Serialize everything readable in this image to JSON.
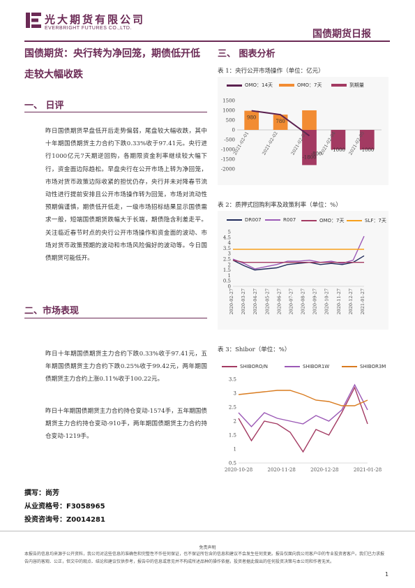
{
  "header": {
    "company_cn": "光大期货有限公司",
    "company_en": "EVERBRIGHT FUTURES CO.,LTD.",
    "report_title": "国债期货日报",
    "logo_icon": "everbright-logo-icon",
    "brand_color": "#6b2a55"
  },
  "headline": "国债期货：央行转为净回笼，期债低开低走较大幅收跌",
  "section1": {
    "title": "一、 日评",
    "paragraph": "昨日国债期货早盘低开后走势偏弱，尾盘较大幅收跌，其中十年期国债期货主力合约下跌0.33%收于97.41元。央行进行1000亿元7天期逆回购，各期限资金利率继续较大幅下行，资金面边际趋松。早盘央行在公开市场上转为净回笼，市场对货币政策边际收紧的担忧仍存，央行并未对降春节流动性进行提前安排且公开市场操作转为回笼，市场对流动性预期偏谨慎，期债低开低走，一级市场招标结果显示国债需求一般，短端国债期货跌幅大于长端，期债隐含利差走平。关注临近春节时点的央行公开市场操作和资金面的波动、市场对货币政策预期的波动和市场风险偏好的波动等。今日国债期货可能低开。"
  },
  "section2": {
    "title": "二、市场表现",
    "paragraph1": "昨日十年期国债期货主力合约下跌0.33%收于97.41元，五年期国债期货主力合约下跌0.25%收于99.42元，两年期国债期货主力合约上涨0.11%收于100.22元。",
    "paragraph2": "昨日十年期国债期货主力合约持仓变动-1574手，五年期国债期货主力合约持仓变动-910手，两年期国债期货主力合约持仓变动-1219手。"
  },
  "author": {
    "writer": "撰写：尚芳",
    "license": "从业资格号：F3058965",
    "consult": "投资咨询号：Z0014281"
  },
  "section3": {
    "title": "三、 图表分析"
  },
  "charts": [
    {
      "caption": "表 1：央行公开市场操作（单位：亿元）",
      "legend": [
        "OMO：14天",
        "OMO：7天",
        "到期量"
      ]
    },
    {
      "caption": "表 2：质押式回购利率及政策利率（单位：%）",
      "legend": [
        "DR007",
        "R007",
        "OMO：7天",
        "SLF：7天"
      ]
    },
    {
      "caption": "表 3：Shibor（单位：%）",
      "legend": [
        "SHIBORO/N",
        "SHIBOR1W",
        "SHIBOR3M"
      ]
    }
  ],
  "chart_data": [
    {
      "type": "bar",
      "categories": [
        "2021-02-01",
        "2021-02-02",
        "2021-02-03",
        "2021-02-04",
        "2021-02-05"
      ],
      "series": [
        {
          "name": "OMO：14天",
          "type": "line",
          "values": [
            980,
            780,
            -300,
            null,
            null
          ],
          "color": "#5b2150"
        },
        {
          "name": "OMO：7天",
          "values": [
            980,
            780,
            1000,
            null,
            null
          ],
          "color": "#f28c33"
        },
        {
          "name": "到期量",
          "values": [
            null,
            null,
            -1800,
            -1000,
            -1000
          ],
          "color": "#a33a62"
        }
      ],
      "data_labels": [
        "980",
        "780",
        "-1800",
        "-800",
        "-1000",
        "-1000"
      ],
      "ylim": [
        -2000,
        1500
      ],
      "yticks": [
        1500,
        1000,
        500,
        0,
        -500,
        -1000,
        -1500,
        -2000
      ],
      "xlabel": "",
      "ylabel": ""
    },
    {
      "type": "line",
      "x_ticks": [
        "2020-02-27",
        "2020-03-27",
        "2020-04-27",
        "2020-05-27",
        "2020-06-27",
        "2020-07-27",
        "2020-08-27",
        "2020-09-27",
        "2020-10-27",
        "2020-11-27",
        "2020-12-27",
        "2021-01-27"
      ],
      "series": [
        {
          "name": "DR007",
          "color": "#1f2a5a",
          "values": [
            2.4,
            1.9,
            1.5,
            1.6,
            1.7,
            2.0,
            2.1,
            2.2,
            2.0,
            2.1,
            2.0,
            2.2,
            2.8
          ]
        },
        {
          "name": "R007",
          "color": "#9b59b6",
          "values": [
            2.5,
            2.1,
            1.6,
            1.8,
            2.0,
            2.3,
            2.3,
            2.4,
            2.2,
            2.3,
            2.1,
            2.4,
            4.6
          ]
        },
        {
          "name": "OMO：7天",
          "color": "#a33a62",
          "values": [
            2.4,
            2.2,
            2.2,
            2.2,
            2.2,
            2.2,
            2.2,
            2.2,
            2.2,
            2.2,
            2.2,
            2.2,
            2.2
          ]
        },
        {
          "name": "SLF：7天",
          "color": "#f7a01b",
          "values": [
            3.4,
            3.4,
            3.4,
            3.4,
            3.4,
            3.4,
            3.4,
            3.4,
            3.4,
            3.4,
            3.4,
            3.4,
            3.4
          ]
        }
      ],
      "ylim": [
        0,
        5
      ],
      "yticks": [
        0,
        0.5,
        1,
        1.5,
        2,
        2.5,
        3,
        3.5,
        4,
        4.5,
        5
      ]
    },
    {
      "type": "line",
      "x_ticks": [
        "2020-10-28",
        "2020-11-28",
        "2020-12-28",
        "2021-01-28"
      ],
      "series": [
        {
          "name": "SHIBORO/N",
          "color": "#a33a62",
          "values": [
            2.1,
            1.3,
            2.0,
            1.9,
            1.6,
            0.9,
            1.7,
            1.5,
            2.3,
            3.2,
            1.9
          ]
        },
        {
          "name": "SHIBOR1W",
          "color": "#9b59b6",
          "values": [
            2.3,
            1.8,
            2.3,
            2.1,
            2.0,
            1.9,
            2.2,
            2.0,
            2.4,
            3.3,
            2.4
          ]
        },
        {
          "name": "SHIBOR3M",
          "color": "#d97b1f",
          "values": [
            2.95,
            3.0,
            3.05,
            3.1,
            3.1,
            2.95,
            2.75,
            2.7,
            2.55,
            2.55,
            2.75
          ]
        }
      ],
      "ylim": [
        0.5,
        3.5
      ],
      "yticks": [
        0.5,
        1,
        1.5,
        2,
        2.5,
        3,
        3.5
      ]
    }
  ],
  "footer": {
    "title": "免责声明",
    "text": "本报告的信息均来源于公开资料，我公司对这些信息的准确性和完整性不作任何保证，也不保证所包含的信息和建议不会发生任何变更。报告仅面向我公司客户中的专业投资者客户。我们已力求报告内容的客观、公正，但文中的观点、结论和建议仅供参考，报告中的信息或意见并不构成所述品种的操作依据，投资者据此做出的任何投资决策与本公司和作者无关。",
    "page": "1"
  }
}
